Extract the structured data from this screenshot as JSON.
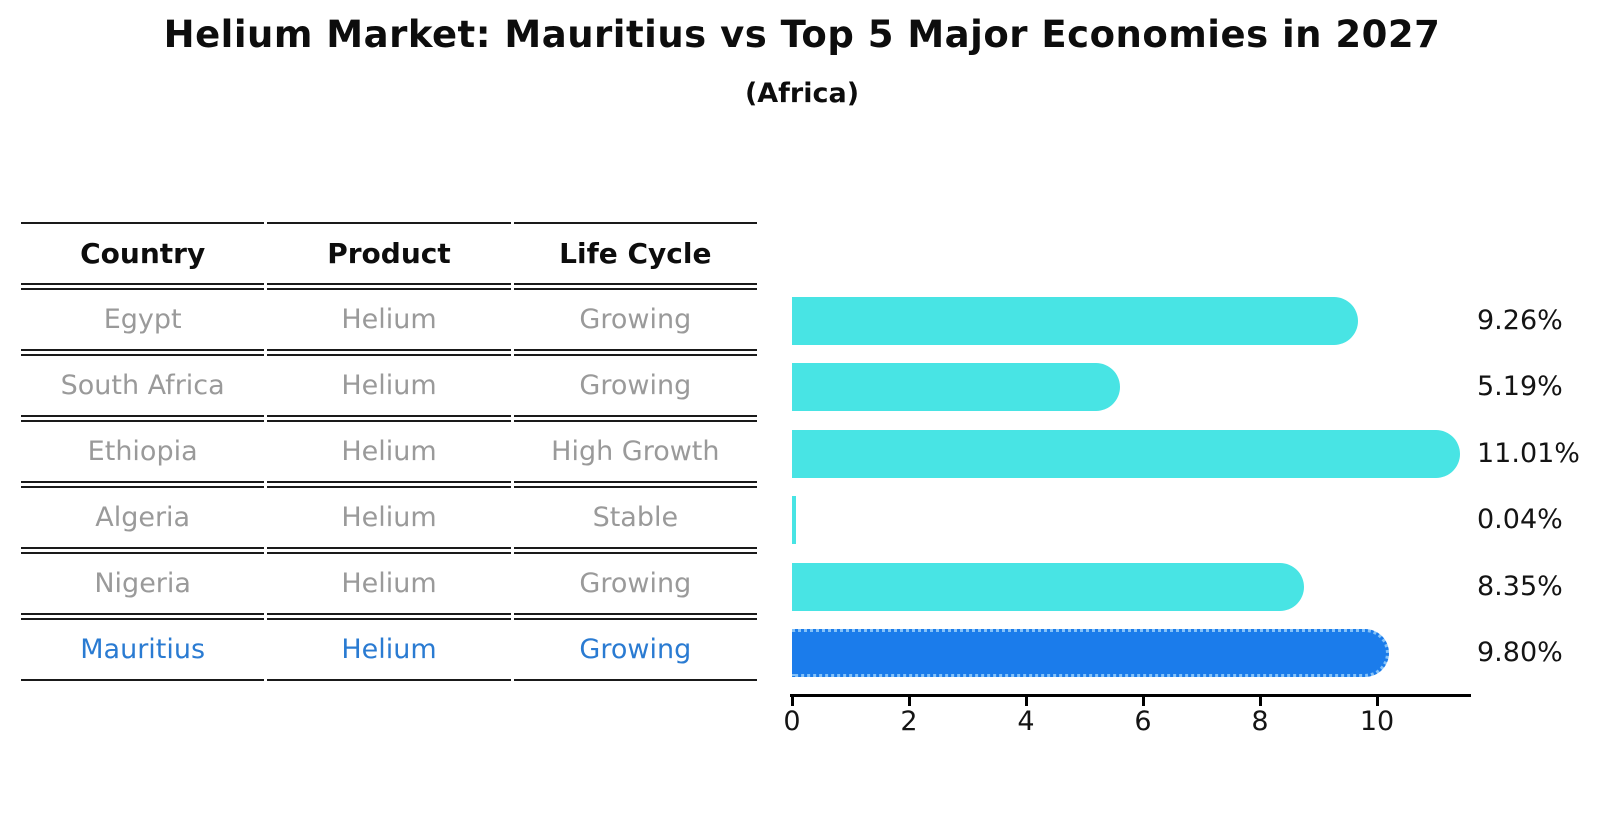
{
  "title": "Helium Market: Mauritius vs Top 5 Major Economies in 2027",
  "subtitle": "(Africa)",
  "table": {
    "headers": [
      "Country",
      "Product",
      "Life Cycle"
    ],
    "rows": [
      {
        "country": "Egypt",
        "product": "Helium",
        "life_cycle": "Growing",
        "highlight": false
      },
      {
        "country": "South Africa",
        "product": "Helium",
        "life_cycle": "Growing",
        "highlight": false
      },
      {
        "country": "Ethiopia",
        "product": "Helium",
        "life_cycle": "High Growth",
        "highlight": false
      },
      {
        "country": "Algeria",
        "product": "Helium",
        "life_cycle": "Stable",
        "highlight": false
      },
      {
        "country": "Nigeria",
        "product": "Helium",
        "life_cycle": "Growing",
        "highlight": false
      },
      {
        "country": "Mauritius",
        "product": "Helium",
        "life_cycle": "Growing",
        "highlight": true
      }
    ]
  },
  "chart_data": {
    "type": "bar",
    "orientation": "horizontal",
    "title": "Helium Market: Mauritius vs Top 5 Major Economies in 2027 (Africa)",
    "categories": [
      "Egypt",
      "South Africa",
      "Ethiopia",
      "Algeria",
      "Nigeria",
      "Mauritius"
    ],
    "values": [
      9.26,
      5.19,
      11.01,
      0.04,
      8.35,
      9.8
    ],
    "value_labels": [
      "9.26%",
      "5.19%",
      "11.01%",
      "0.04%",
      "8.35%",
      "9.80%"
    ],
    "highlight_index": 5,
    "xlabel": "",
    "ylabel": "",
    "xlim": [
      0,
      11.6
    ],
    "x_ticks": [
      0,
      2,
      4,
      6,
      8,
      10
    ],
    "x_tick_labels": [
      "0",
      "2",
      "4",
      "6",
      "8",
      "10"
    ],
    "grid": false,
    "legend_position": "none",
    "bar_color": "#48e4e4",
    "highlight_bar_color": "#1b7ceb",
    "highlight_bar_edge_color": "#85c2f8",
    "highlight_text_color": "#2a7bd2",
    "row_text_color": "#9a9a9a"
  }
}
